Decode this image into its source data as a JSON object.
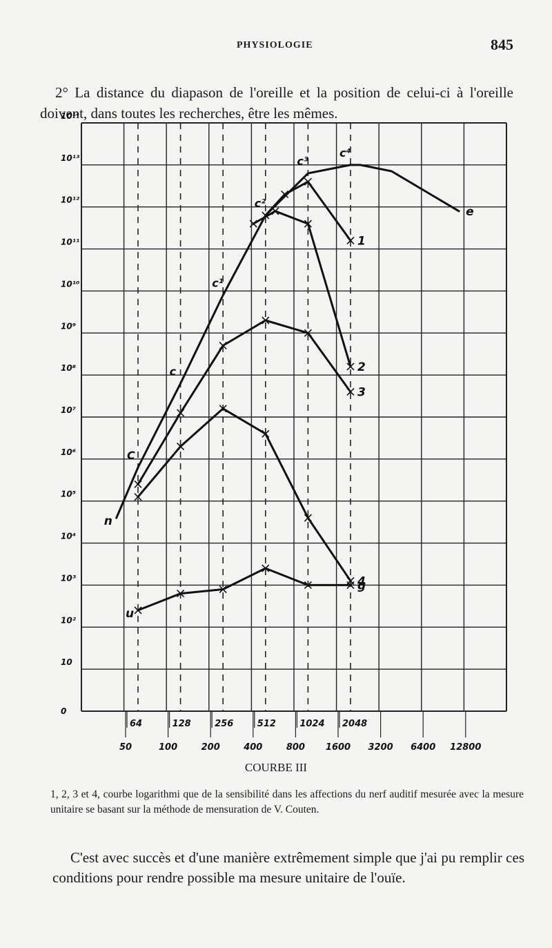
{
  "page": {
    "running_head": "PHYSIOLOGIE",
    "page_number": "845"
  },
  "intro_paragraph": "2° La distance du diapason de l'oreille et la position de celui-ci à l'oreille doivent, dans toutes les recherches, être les mêmes.",
  "chart_title": "COURBE III",
  "caption": "1, 2, 3 et 4, courbe logarithmi que de la sensibilité dans les affections du nerf auditif mesurée avec la mesure unitaire se basant sur la méthode de mensuration de V. Couten.",
  "closing_paragraph": "C'est avec succès et d'une manière extrêmement simple que j'ai pu remplir ces conditions pour rendre possible ma mesure unitaire de l'ouïe.",
  "chart_data": {
    "type": "line",
    "title": "",
    "xlabel": "",
    "ylabel": "",
    "y_scale": "log",
    "grid": true,
    "y_ticks": [
      "0",
      "10",
      "10²",
      "10³",
      "10⁴",
      "10⁵",
      "10⁶",
      "10⁷",
      "10⁸",
      "10⁹",
      "10¹⁰",
      "10¹¹",
      "10¹²",
      "10¹³",
      "10¹⁴"
    ],
    "x_ticks_top": [
      "64",
      "128",
      "256",
      "512",
      "1024",
      "2048"
    ],
    "x_ticks_bottom": [
      "50",
      "100",
      "200",
      "400",
      "800",
      "1600",
      "3200",
      "6400",
      "12800"
    ],
    "note": "Abscissa: frequency on a log scale; ordinate: exponent of 10 (0 = 10⁰).",
    "curves": [
      {
        "name": "n–e",
        "start_label": "n",
        "end_label": "e",
        "points": [
          [
            45,
            4.6
          ],
          [
            64,
            5.8
          ],
          [
            128,
            7.8
          ],
          [
            256,
            9.9
          ],
          [
            512,
            11.8
          ],
          [
            1024,
            12.8
          ],
          [
            2048,
            13.0
          ],
          [
            2400,
            13.0
          ],
          [
            4000,
            12.85
          ],
          [
            12000,
            11.9
          ]
        ],
        "point_labels": [
          {
            "x": 64,
            "text": "C"
          },
          {
            "x": 128,
            "text": "c"
          },
          {
            "x": 256,
            "text": "c¹"
          },
          {
            "x": 512,
            "text": "c²"
          },
          {
            "x": 1024,
            "text": "c³"
          },
          {
            "x": 2048,
            "text": "c⁴"
          }
        ]
      },
      {
        "name": "1",
        "end_label": "1",
        "points": [
          [
            512,
            11.8
          ],
          [
            700,
            12.3
          ],
          [
            1024,
            12.6
          ],
          [
            2048,
            11.2
          ]
        ]
      },
      {
        "name": "2",
        "end_label": "2",
        "points": [
          [
            420,
            11.6
          ],
          [
            600,
            11.9
          ],
          [
            1024,
            11.6
          ],
          [
            2048,
            8.2
          ]
        ]
      },
      {
        "name": "3",
        "end_label": "3",
        "points": [
          [
            64,
            5.4
          ],
          [
            128,
            7.1
          ],
          [
            256,
            8.7
          ],
          [
            512,
            9.3
          ],
          [
            1024,
            9.0
          ],
          [
            2048,
            7.6
          ]
        ]
      },
      {
        "name": "4",
        "end_label": "4",
        "points": [
          [
            64,
            5.1
          ],
          [
            128,
            6.3
          ],
          [
            256,
            7.2
          ],
          [
            512,
            6.6
          ],
          [
            1024,
            4.6
          ],
          [
            2048,
            3.1
          ]
        ]
      },
      {
        "name": "u–g",
        "start_label": "u",
        "end_label": "g",
        "points": [
          [
            64,
            2.4
          ],
          [
            128,
            2.8
          ],
          [
            256,
            2.9
          ],
          [
            512,
            3.4
          ],
          [
            1024,
            3.0
          ],
          [
            2048,
            3.0
          ]
        ]
      }
    ]
  }
}
